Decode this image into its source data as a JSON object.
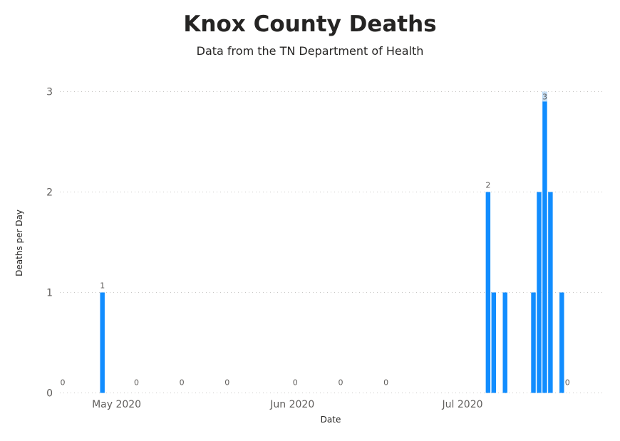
{
  "chart_data": {
    "type": "bar",
    "title": "Knox County Deaths",
    "subtitle": "Data from the TN Department of Health",
    "xlabel": "Date",
    "ylabel": "Deaths per Day",
    "ylim": [
      0,
      3
    ],
    "yticks": [
      0,
      1,
      2,
      3
    ],
    "xticks": [
      {
        "date": "2020-05-01",
        "label": "May 2020"
      },
      {
        "date": "2020-06-01",
        "label": "Jun 2020"
      },
      {
        "date": "2020-07-01",
        "label": "Jul 2020"
      }
    ],
    "xrange": [
      "2020-04-21",
      "2020-07-26"
    ],
    "grid": true,
    "bar_color": "#118DFF",
    "highlight_color": "#c6dff5",
    "data": [
      {
        "date": "2020-04-21",
        "value": 0,
        "label": "0"
      },
      {
        "date": "2020-04-28",
        "value": 1,
        "label": "1"
      },
      {
        "date": "2020-05-04",
        "value": 0,
        "label": "0"
      },
      {
        "date": "2020-05-12",
        "value": 0,
        "label": "0"
      },
      {
        "date": "2020-05-20",
        "value": 0,
        "label": "0"
      },
      {
        "date": "2020-06-01",
        "value": 0,
        "label": "0"
      },
      {
        "date": "2020-06-09",
        "value": 0,
        "label": "0"
      },
      {
        "date": "2020-06-17",
        "value": 0,
        "label": "0"
      },
      {
        "date": "2020-07-05",
        "value": 2,
        "label": "2"
      },
      {
        "date": "2020-07-06",
        "value": 1
      },
      {
        "date": "2020-07-08",
        "value": 1
      },
      {
        "date": "2020-07-13",
        "value": 1
      },
      {
        "date": "2020-07-14",
        "value": 2
      },
      {
        "date": "2020-07-15",
        "value": 3,
        "label": "3",
        "highlight": true
      },
      {
        "date": "2020-07-16",
        "value": 2
      },
      {
        "date": "2020-07-18",
        "value": 1
      },
      {
        "date": "2020-07-19",
        "value": 0,
        "label": "0"
      }
    ]
  }
}
